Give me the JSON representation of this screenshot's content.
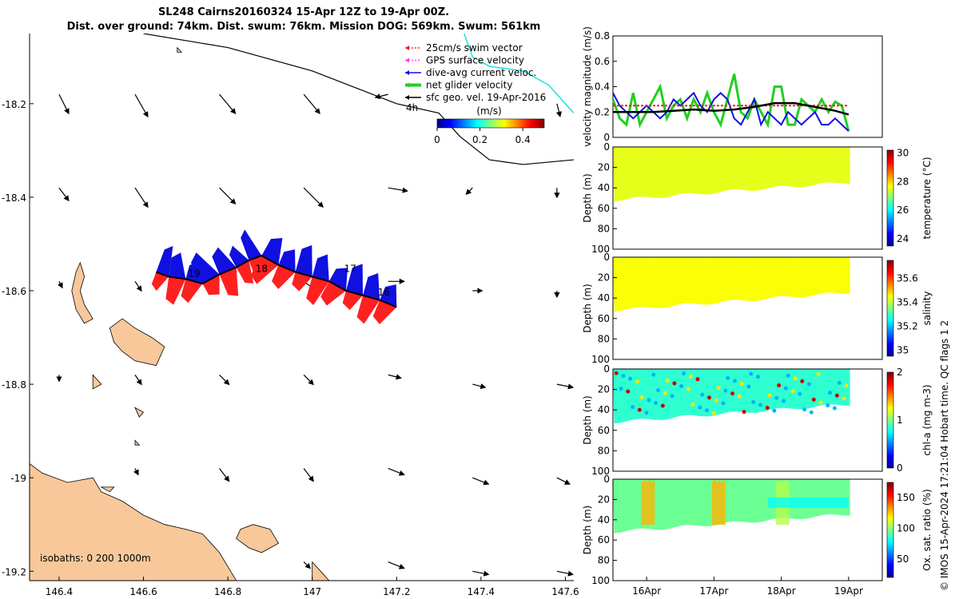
{
  "title": {
    "line1": "SL248 Cairns20160324 15-Apr 12Z to 19-Apr 00Z.",
    "line2": "Dist. over ground: 74km. Dist. swum: 76km. Mission DOG: 569km. Swum: 561km"
  },
  "credit": "© IMOS 15-Apr-2024 17:21:04 Hobart time. QC flags 1  2",
  "colors": {
    "land": "#f8c89a",
    "swim_vector": "#ff2020",
    "gps_velocity": "#ff40ff",
    "dive_current": "#1010e0",
    "net_velocity": "#20d020",
    "sfc_geo": "#000000",
    "cyan_line": "#20e0e0"
  },
  "chart_data": [
    {
      "type": "map",
      "xlim": [
        146.33,
        147.62
      ],
      "ylim": [
        -19.22,
        -18.05
      ],
      "xticks": [
        146.4,
        146.6,
        146.8,
        147,
        147.2,
        147.4,
        147.6
      ],
      "xtick_labels": [
        "146.4",
        "146.6",
        "146.8",
        "147",
        "147.2",
        "147.4",
        "147.6"
      ],
      "yticks": [
        -18.2,
        -18.4,
        -18.6,
        -18.8,
        -19,
        -19.2
      ],
      "ytick_labels": [
        "-18.2",
        "-18.4",
        "-18.6",
        "-18.8",
        "-19",
        "-19.2"
      ],
      "legend": [
        {
          "label": "25cm/s swim vector",
          "color": "#ff2020",
          "style": "dotted"
        },
        {
          "label": "GPS surface velocity",
          "color": "#ff40ff",
          "style": "dotted"
        },
        {
          "label": "dive-avg current veloc.",
          "color": "#1010e0",
          "style": "solid"
        },
        {
          "label": "net glider velocity",
          "color": "#20d020",
          "style": "thick"
        },
        {
          "label": "sfc geo. vel. 19-Apr-2016",
          "color": "#000000",
          "style": "solid"
        }
      ],
      "legend_extra": "4h",
      "colorbar": {
        "label": "(m/s)",
        "ticks": [
          0,
          0.2,
          0.4
        ],
        "tick_labels": [
          "0",
          "0.2",
          "0.4"
        ],
        "range": [
          0,
          0.5
        ]
      },
      "isobath_label": "isobaths: 0   200  1000m",
      "day_labels": [
        {
          "text": "19",
          "lon": 146.72,
          "lat": -18.57
        },
        {
          "text": "18",
          "lon": 146.88,
          "lat": -18.56
        },
        {
          "text": "17",
          "lon": 147.09,
          "lat": -18.56
        },
        {
          "text": "16",
          "lon": 147.17,
          "lat": -18.61
        }
      ],
      "track": [
        [
          147.2,
          -18.635
        ],
        [
          147.16,
          -18.62
        ],
        [
          147.12,
          -18.61
        ],
        [
          147.08,
          -18.6
        ],
        [
          147.04,
          -18.58
        ],
        [
          147.0,
          -18.57
        ],
        [
          146.96,
          -18.56
        ],
        [
          146.92,
          -18.545
        ],
        [
          146.88,
          -18.525
        ],
        [
          146.85,
          -18.535
        ],
        [
          146.82,
          -18.55
        ],
        [
          146.78,
          -18.565
        ],
        [
          146.74,
          -18.585
        ],
        [
          146.7,
          -18.575
        ],
        [
          146.66,
          -18.57
        ],
        [
          146.63,
          -18.56
        ]
      ],
      "current_arrows": [
        {
          "lon": 146.4,
          "lat": -18.18,
          "u": 0.03,
          "v": -0.06
        },
        {
          "lon": 146.58,
          "lat": -18.18,
          "u": 0.04,
          "v": -0.07
        },
        {
          "lon": 146.78,
          "lat": -18.18,
          "u": 0.05,
          "v": -0.06
        },
        {
          "lon": 146.98,
          "lat": -18.18,
          "u": 0.05,
          "v": -0.06
        },
        {
          "lon": 147.18,
          "lat": -18.18,
          "u": -0.04,
          "v": -0.01
        },
        {
          "lon": 147.58,
          "lat": -18.2,
          "u": 0.01,
          "v": -0.04
        },
        {
          "lon": 146.4,
          "lat": -18.38,
          "u": 0.03,
          "v": -0.04
        },
        {
          "lon": 146.58,
          "lat": -18.38,
          "u": 0.04,
          "v": -0.06
        },
        {
          "lon": 146.78,
          "lat": -18.38,
          "u": 0.05,
          "v": -0.05
        },
        {
          "lon": 146.98,
          "lat": -18.38,
          "u": 0.06,
          "v": -0.06
        },
        {
          "lon": 147.18,
          "lat": -18.38,
          "u": 0.06,
          "v": -0.01
        },
        {
          "lon": 147.38,
          "lat": -18.38,
          "u": -0.02,
          "v": -0.02
        },
        {
          "lon": 147.58,
          "lat": -18.38,
          "u": 0.0,
          "v": -0.03
        },
        {
          "lon": 146.4,
          "lat": -18.58,
          "u": 0.01,
          "v": -0.02
        },
        {
          "lon": 146.58,
          "lat": -18.58,
          "u": 0.02,
          "v": -0.03
        },
        {
          "lon": 146.98,
          "lat": -18.58,
          "u": 0.04,
          "v": -0.03
        },
        {
          "lon": 147.18,
          "lat": -18.58,
          "u": 0.05,
          "v": 0.0
        },
        {
          "lon": 147.38,
          "lat": -18.6,
          "u": 0.03,
          "v": 0.0
        },
        {
          "lon": 147.58,
          "lat": -18.6,
          "u": 0.0,
          "v": -0.02
        },
        {
          "lon": 146.4,
          "lat": -18.78,
          "u": 0.0,
          "v": -0.02
        },
        {
          "lon": 146.58,
          "lat": -18.78,
          "u": 0.02,
          "v": -0.03
        },
        {
          "lon": 146.78,
          "lat": -18.78,
          "u": 0.03,
          "v": -0.03
        },
        {
          "lon": 146.98,
          "lat": -18.78,
          "u": 0.03,
          "v": -0.03
        },
        {
          "lon": 147.18,
          "lat": -18.78,
          "u": 0.04,
          "v": -0.01
        },
        {
          "lon": 147.38,
          "lat": -18.8,
          "u": 0.04,
          "v": -0.01
        },
        {
          "lon": 147.58,
          "lat": -18.8,
          "u": 0.05,
          "v": -0.01
        },
        {
          "lon": 146.58,
          "lat": -18.98,
          "u": 0.01,
          "v": -0.02
        },
        {
          "lon": 146.78,
          "lat": -18.98,
          "u": 0.03,
          "v": -0.04
        },
        {
          "lon": 146.98,
          "lat": -18.98,
          "u": 0.03,
          "v": -0.04
        },
        {
          "lon": 147.18,
          "lat": -18.98,
          "u": 0.05,
          "v": -0.02
        },
        {
          "lon": 147.38,
          "lat": -19.0,
          "u": 0.05,
          "v": -0.02
        },
        {
          "lon": 147.58,
          "lat": -19.0,
          "u": 0.04,
          "v": -0.02
        },
        {
          "lon": 146.98,
          "lat": -19.18,
          "u": 0.02,
          "v": -0.02
        },
        {
          "lon": 147.18,
          "lat": -19.18,
          "u": 0.05,
          "v": -0.02
        },
        {
          "lon": 147.38,
          "lat": -19.2,
          "u": 0.05,
          "v": -0.01
        },
        {
          "lon": 147.58,
          "lat": -19.2,
          "u": 0.05,
          "v": -0.01
        }
      ],
      "coastline_reef": [
        [
          146.6,
          -18.05
        ],
        [
          146.8,
          -18.08
        ],
        [
          147.0,
          -18.13
        ],
        [
          147.2,
          -18.2
        ],
        [
          147.3,
          -18.22
        ],
        [
          147.35,
          -18.27
        ],
        [
          147.42,
          -18.32
        ],
        [
          147.5,
          -18.33
        ],
        [
          147.62,
          -18.32
        ]
      ],
      "cyan_line": [
        [
          147.36,
          -18.05
        ],
        [
          147.38,
          -18.1
        ],
        [
          147.42,
          -18.12
        ],
        [
          147.5,
          -18.13
        ],
        [
          147.56,
          -18.16
        ],
        [
          147.6,
          -18.2
        ],
        [
          147.62,
          -18.22
        ]
      ]
    },
    {
      "type": "line",
      "ylabel": "velocity magnitude (m/s)",
      "ylim": [
        0,
        0.8
      ],
      "yticks": [
        0,
        0.2,
        0.4,
        0.6,
        0.8
      ],
      "ytick_labels": [
        "0",
        "0.2",
        "0.4",
        "0.6",
        "0.8"
      ],
      "xlim": [
        15.5,
        19.5
      ],
      "series": [
        {
          "color": "#20d020",
          "x": [
            15.5,
            15.6,
            15.7,
            15.8,
            15.9,
            16.0,
            16.1,
            16.2,
            16.3,
            16.4,
            16.5,
            16.6,
            16.7,
            16.8,
            16.9,
            17.0,
            17.1,
            17.2,
            17.3,
            17.4,
            17.5,
            17.6,
            17.7,
            17.8,
            17.9,
            18.0,
            18.1,
            18.2,
            18.3,
            18.4,
            18.5,
            18.6,
            18.7,
            18.8,
            18.9,
            19.0
          ],
          "values": [
            0.3,
            0.15,
            0.1,
            0.35,
            0.1,
            0.2,
            0.3,
            0.4,
            0.15,
            0.25,
            0.3,
            0.15,
            0.3,
            0.2,
            0.35,
            0.2,
            0.1,
            0.3,
            0.5,
            0.2,
            0.15,
            0.3,
            0.2,
            0.1,
            0.4,
            0.4,
            0.1,
            0.1,
            0.3,
            0.25,
            0.2,
            0.3,
            0.2,
            0.28,
            0.25,
            0.05
          ]
        },
        {
          "color": "#1010e0",
          "x": [
            15.5,
            15.6,
            15.7,
            15.8,
            15.9,
            16.0,
            16.1,
            16.2,
            16.3,
            16.4,
            16.5,
            16.6,
            16.7,
            16.8,
            16.9,
            17.0,
            17.1,
            17.2,
            17.3,
            17.4,
            17.5,
            17.6,
            17.7,
            17.8,
            17.9,
            18.0,
            18.1,
            18.2,
            18.3,
            18.4,
            18.5,
            18.6,
            18.7,
            18.8,
            18.9,
            19.0
          ],
          "values": [
            0.35,
            0.25,
            0.2,
            0.15,
            0.2,
            0.25,
            0.2,
            0.15,
            0.2,
            0.3,
            0.25,
            0.3,
            0.35,
            0.25,
            0.2,
            0.3,
            0.35,
            0.3,
            0.15,
            0.1,
            0.2,
            0.3,
            0.1,
            0.2,
            0.15,
            0.1,
            0.2,
            0.15,
            0.1,
            0.15,
            0.2,
            0.1,
            0.1,
            0.15,
            0.1,
            0.05
          ]
        },
        {
          "color": "#ff2020",
          "x": [
            15.5,
            19.0
          ],
          "values": [
            0.25,
            0.25
          ]
        },
        {
          "color": "#000000",
          "x": [
            15.5,
            15.8,
            16.1,
            16.4,
            16.7,
            17.0,
            17.3,
            17.6,
            17.9,
            18.2,
            18.5,
            18.8,
            19.0
          ],
          "values": [
            0.2,
            0.2,
            0.2,
            0.21,
            0.22,
            0.21,
            0.22,
            0.24,
            0.27,
            0.27,
            0.24,
            0.21,
            0.18
          ]
        }
      ]
    },
    {
      "type": "heatmap",
      "variable": "temperature",
      "ylabel": "Depth (m)",
      "cbar_label": "temperature (°C)",
      "ylim": [
        0,
        100
      ],
      "yticks": [
        0,
        20,
        40,
        60,
        80,
        100
      ],
      "ytick_labels": [
        "0",
        "20",
        "40",
        "60",
        "80",
        "100"
      ],
      "clim": [
        23.5,
        30.2
      ],
      "cbar_ticks": [
        24,
        26,
        28,
        30
      ],
      "cbar_tick_labels": [
        "24",
        "26",
        "28",
        "30"
      ]
    },
    {
      "type": "heatmap",
      "variable": "salinity",
      "ylabel": "Depth (m)",
      "cbar_label": "salinity",
      "ylim": [
        0,
        100
      ],
      "yticks": [
        0,
        20,
        40,
        60,
        80,
        100
      ],
      "ytick_labels": [
        "0",
        "20",
        "40",
        "60",
        "80",
        "100"
      ],
      "clim": [
        34.95,
        35.75
      ],
      "cbar_ticks": [
        35,
        35.2,
        35.4,
        35.6
      ],
      "cbar_tick_labels": [
        "35",
        "35.2",
        "35.4",
        "35.6"
      ]
    },
    {
      "type": "heatmap",
      "variable": "chl-a",
      "ylabel": "Depth (m)",
      "cbar_label": "chl-a (mg m-3)",
      "ylim": [
        0,
        100
      ],
      "yticks": [
        0,
        20,
        40,
        60,
        80,
        100
      ],
      "ytick_labels": [
        "0",
        "20",
        "40",
        "60",
        "80",
        "100"
      ],
      "clim": [
        0,
        2
      ],
      "cbar_ticks": [
        0,
        1,
        2
      ],
      "cbar_tick_labels": [
        "0",
        "1",
        "2"
      ]
    },
    {
      "type": "heatmap",
      "variable": "oxygen",
      "ylabel": "Depth (m)",
      "cbar_label": "Ox. sat. ratio (%)",
      "ylim": [
        0,
        100
      ],
      "yticks": [
        0,
        20,
        40,
        60,
        80,
        100
      ],
      "ytick_labels": [
        "0",
        "20",
        "40",
        "60",
        "80",
        "100"
      ],
      "clim": [
        20,
        175
      ],
      "cbar_ticks": [
        50,
        100,
        150
      ],
      "cbar_tick_labels": [
        "50",
        "100",
        "150"
      ],
      "xticks": [
        16,
        17,
        18,
        19
      ],
      "xtick_labels": [
        "16Apr",
        "17Apr",
        "18Apr",
        "19Apr"
      ]
    }
  ]
}
